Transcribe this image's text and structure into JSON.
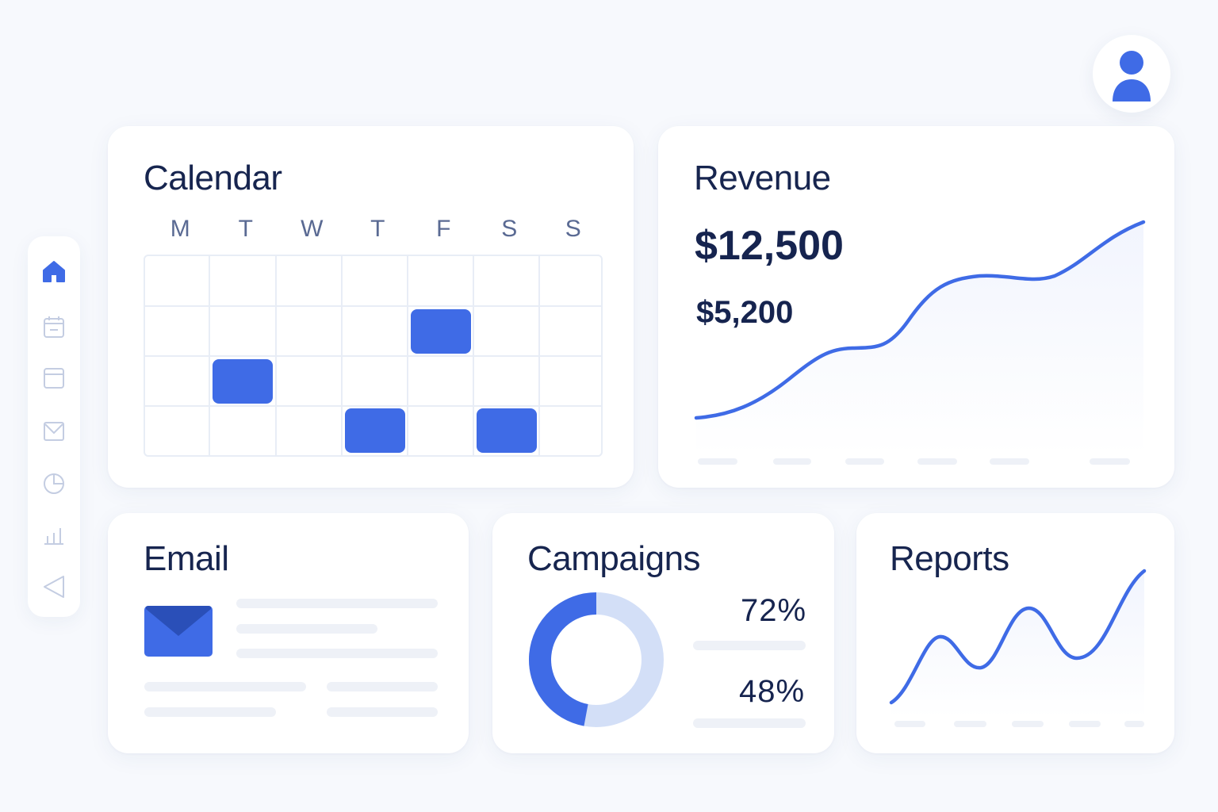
{
  "accent_color": "#3f6be6",
  "user": {
    "avatar_icon": "user-icon"
  },
  "sidebar": {
    "items": [
      {
        "icon": "home-icon",
        "active": true
      },
      {
        "icon": "calendar-icon",
        "active": false
      },
      {
        "icon": "window-icon",
        "active": false
      },
      {
        "icon": "mail-icon",
        "active": false
      },
      {
        "icon": "pie-chart-icon",
        "active": false
      },
      {
        "icon": "bar-chart-icon",
        "active": false
      },
      {
        "icon": "send-icon",
        "active": false
      }
    ]
  },
  "calendar": {
    "title": "Calendar",
    "days": [
      "M",
      "T",
      "W",
      "T",
      "F",
      "S",
      "S"
    ],
    "rows": 4,
    "events": [
      {
        "row": 1,
        "col": 4
      },
      {
        "row": 2,
        "col": 1
      },
      {
        "row": 3,
        "col": 3
      },
      {
        "row": 3,
        "col": 5
      }
    ]
  },
  "revenue": {
    "title": "Revenue",
    "primary_value": "$12,500",
    "secondary_value": "$5,200"
  },
  "email": {
    "title": "Email",
    "icon": "envelope-icon"
  },
  "campaigns": {
    "title": "Campaigns",
    "stat_1": "72%",
    "stat_2": "48%"
  },
  "reports": {
    "title": "Reports"
  }
}
